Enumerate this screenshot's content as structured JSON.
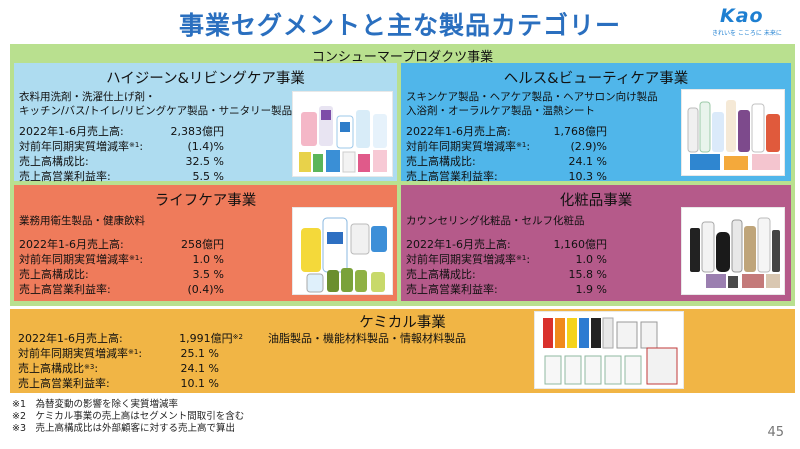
{
  "title": "事業セグメントと主な製品カテゴリー",
  "logo": {
    "name": "Kao",
    "tagline": "きれいを こころに 未来に"
  },
  "consumer_group": "コンシューマープロダクツ事業",
  "segments": {
    "hygiene": {
      "title": "ハイジーン&リビングケア事業",
      "desc": [
        "衣料用洗剤・洗濯仕上げ剤・",
        "キッチン/バス/トイレ/リビングケア製品・サニタリー製品"
      ],
      "metrics": [
        {
          "label": "2022年1-6月売上高:",
          "value": "2,383億円"
        },
        {
          "label": "対前年同期実質増減率",
          "note": "※1",
          "label_end": ":",
          "value": "(1.4)%"
        },
        {
          "label": "売上高構成比:",
          "value": "32.5 %"
        },
        {
          "label": "売上高営業利益率:",
          "value": "5.5 %"
        }
      ]
    },
    "health": {
      "title": "ヘルス&ビューティケア事業",
      "desc": [
        "スキンケア製品・ヘアケア製品・ヘアサロン向け製品",
        "入浴剤・オーラルケア製品・温熱シート"
      ],
      "metrics": [
        {
          "label": "2022年1-6月売上高:",
          "value": "1,768億円"
        },
        {
          "label": "対前年同期実質増減率",
          "note": "※1",
          "label_end": ":",
          "value": "(2.9)%"
        },
        {
          "label": "売上高構成比:",
          "value": "24.1 %"
        },
        {
          "label": "売上高営業利益率:",
          "value": "10.3 %"
        }
      ]
    },
    "life": {
      "title": "ライフケア事業",
      "desc": [
        "業務用衛生製品・健康飲料"
      ],
      "metrics": [
        {
          "label": "2022年1-6月売上高:",
          "value": "258億円"
        },
        {
          "label": "対前年同期実質増減率",
          "note": "※1",
          "label_end": ":",
          "value": "1.0 %"
        },
        {
          "label": "売上高構成比:",
          "value": "3.5 %"
        },
        {
          "label": "売上高営業利益率:",
          "value": "(0.4)%"
        }
      ]
    },
    "cosmetics": {
      "title": "化粧品事業",
      "desc": [
        "カウンセリング化粧品・セルフ化粧品"
      ],
      "metrics": [
        {
          "label": "2022年1-6月売上高:",
          "value": "1,160億円"
        },
        {
          "label": "対前年同期実質増減率",
          "note": "※1",
          "label_end": ":",
          "value": "1.0 %"
        },
        {
          "label": "売上高構成比:",
          "value": "15.8 %"
        },
        {
          "label": "売上高営業利益率:",
          "value": "1.9 %"
        }
      ]
    },
    "chemical": {
      "title": "ケミカル事業",
      "desc": [
        "油脂製品・機能材料製品・情報材料製品"
      ],
      "metrics": [
        {
          "label": "2022年1-6月売上高:",
          "value": "1,991億円",
          "value_note": "※2"
        },
        {
          "label": "対前年同期実質増減率",
          "note": "※1",
          "label_end": ":",
          "value": "25.1 %"
        },
        {
          "label": "売上高構成比",
          "note": "※3",
          "label_end": ":",
          "value": "24.1 %"
        },
        {
          "label": "売上高営業利益率:",
          "value": "10.1 %"
        }
      ]
    }
  },
  "footnotes": [
    "※1　為替変動の影響を除く実質増減率",
    "※2　ケミカル事業の売上高はセグメント間取引を含む",
    "※3　売上高構成比は外部顧客に対する売上高で算出"
  ],
  "page_number": "45",
  "colors": {
    "title": "#2a6fbf",
    "consumer_bg": "#b9e08f",
    "hygiene_bg": "#aedcf0",
    "health_bg": "#50b6ea",
    "life_bg": "#ef7b5b",
    "cosmetics_bg": "#b55a8a",
    "chemical_bg": "#f1b545"
  }
}
